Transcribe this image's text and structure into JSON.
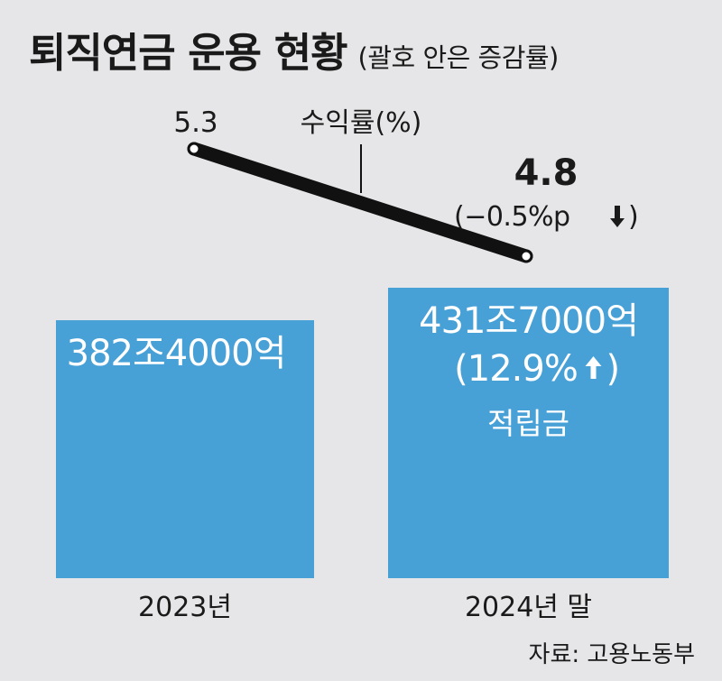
{
  "title": "퇴직연금 운용 현황",
  "subtitle": "(괄호 안은 증감률)",
  "source": "자료: 고용노동부",
  "colors": {
    "bar": "#47a0d6",
    "line": "#111111",
    "background": "#e6e6e8"
  },
  "chart_data": {
    "type": "bar",
    "categories": [
      "2023년",
      "2024년 말"
    ],
    "series": [
      {
        "name": "적립금",
        "unit": "조원",
        "values": [
          382.4,
          431.7
        ],
        "labels": [
          "382조4000억",
          "431조7000억"
        ],
        "change_labels": [
          "",
          "(12.9%"
        ],
        "change_direction": [
          "",
          "up"
        ]
      }
    ],
    "bar_series_label": "적립금",
    "overlay_line": {
      "name": "수익률(%)",
      "values": [
        5.3,
        4.8
      ],
      "value_labels": [
        "5.3",
        "4.8"
      ],
      "change_label": "(−0.5%p",
      "change_direction": "down"
    }
  }
}
